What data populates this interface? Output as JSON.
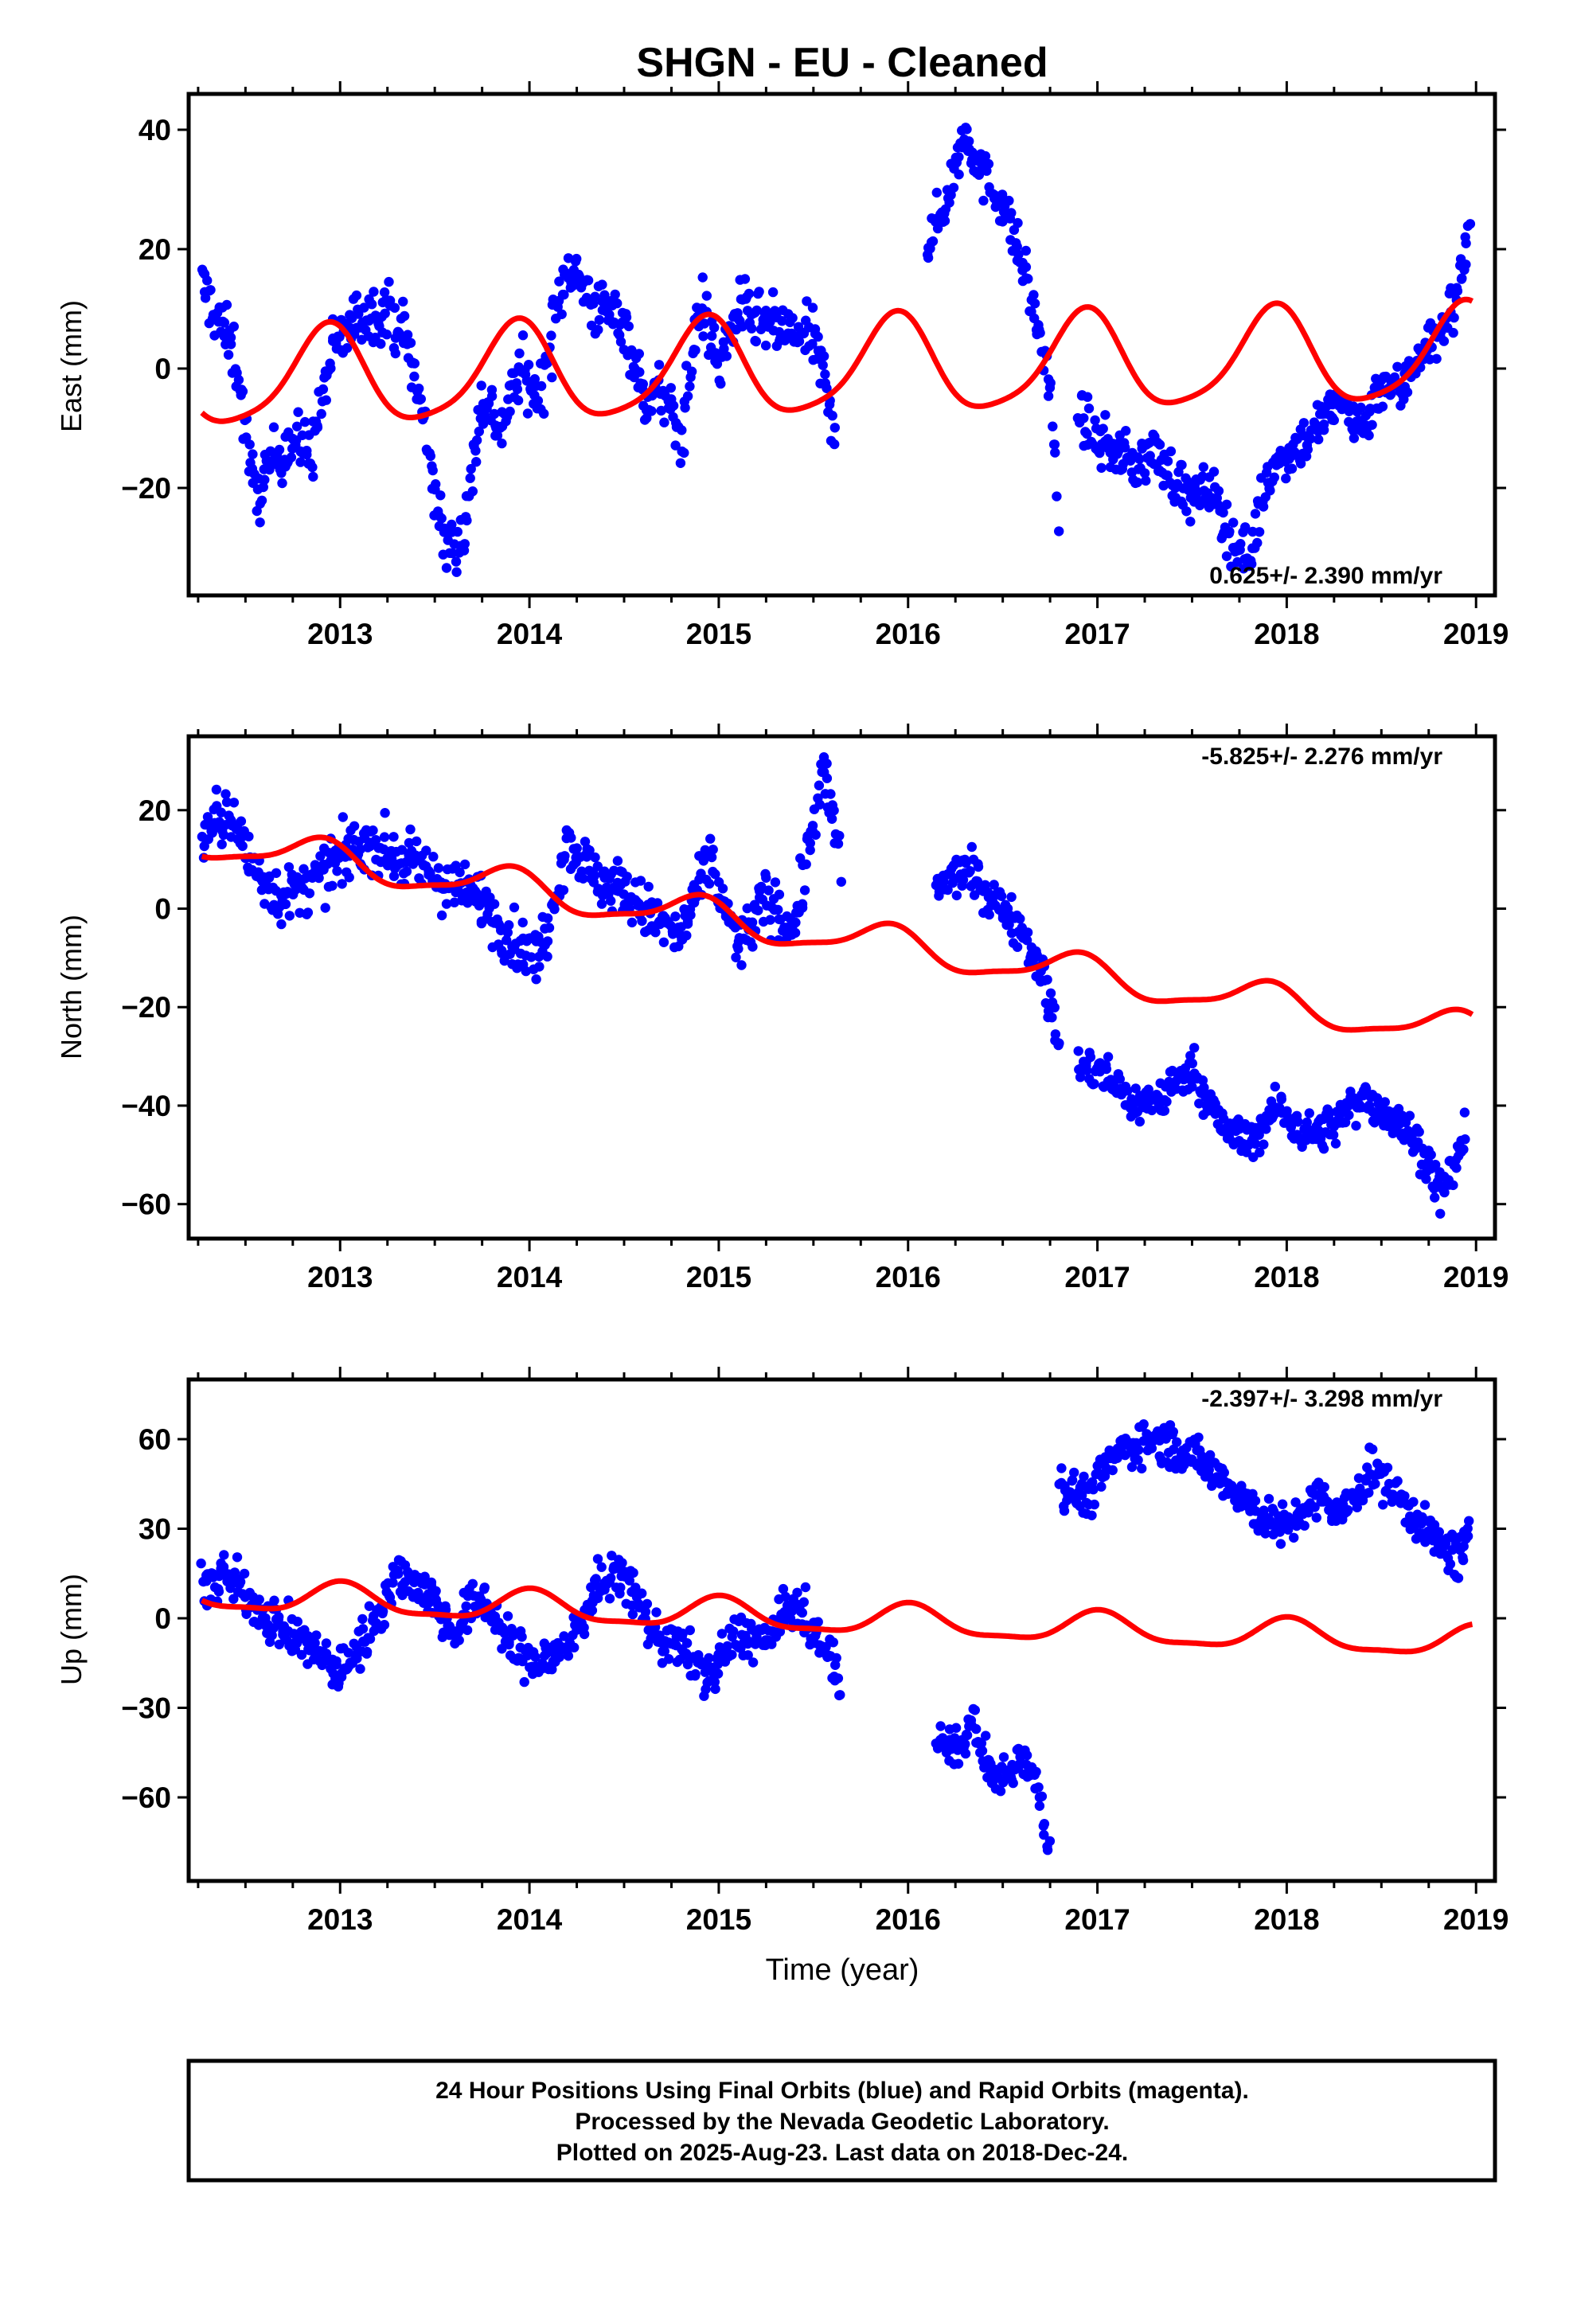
{
  "chart_data": {
    "type": "scatter",
    "title": "SHGN  - EU - Cleaned",
    "xlabel": "Time (year)",
    "x_range": [
      2012.2,
      2019.1
    ],
    "x_ticks": [
      "2013",
      "2014",
      "2015",
      "2016",
      "2017",
      "2018",
      "2019"
    ],
    "series_colors": {
      "final_orbits": "#0000ff",
      "model_fit": "#ff0000"
    },
    "panels": [
      {
        "id": "east",
        "ylabel": "East (mm)",
        "ylim": [
          -38,
          46
        ],
        "yticks": [
          "40",
          "20",
          "0",
          "−20"
        ],
        "ytick_values": [
          40,
          20,
          0,
          -20
        ],
        "rate_label": "0.625+/- 2.390 mm/yr",
        "rate_position": "bottom-right",
        "data_segments": [
          {
            "x": [
              2012.27,
              2012.45,
              2012.55,
              2012.65,
              2012.75,
              2012.85,
              2012.95,
              2013.1,
              2013.25,
              2013.35,
              2013.45,
              2013.55,
              2013.65,
              2013.75,
              2013.85,
              2013.95,
              2014.05,
              2014.2,
              2014.35,
              2014.5,
              2014.6,
              2014.7,
              2014.8,
              2014.9,
              2015.0,
              2015.1,
              2015.2,
              2015.35,
              2015.5,
              2015.62
            ],
            "y": [
              14,
              2,
              -22,
              -15,
              -12,
              -14,
              2,
              9,
              10,
              5,
              -10,
              -30,
              -28,
              -5,
              -10,
              0,
              -5,
              18,
              10,
              8,
              -5,
              -4,
              -12,
              12,
              0,
              10,
              8,
              6,
              5,
              -10
            ],
            "spread": 7
          },
          {
            "x": [
              2016.1,
              2016.2,
              2016.3,
              2016.4,
              2016.5,
              2016.6,
              2016.7,
              2016.75,
              2016.8
            ],
            "y": [
              20,
              28,
              40,
              32,
              28,
              18,
              5,
              -4,
              -25
            ],
            "spread": 6
          },
          {
            "x": [
              2016.9,
              2017.0,
              2017.1,
              2017.2,
              2017.3,
              2017.4,
              2017.5,
              2017.6,
              2017.7,
              2017.8,
              2017.9,
              2018.0,
              2018.1,
              2018.2,
              2018.3,
              2018.4,
              2018.5,
              2018.6,
              2018.7,
              2018.8,
              2018.9,
              2018.97
            ],
            "y": [
              -8,
              -12,
              -14,
              -16,
              -14,
              -18,
              -22,
              -20,
              -28,
              -32,
              -18,
              -14,
              -12,
              -8,
              -6,
              -10,
              -2,
              -4,
              3,
              5,
              12,
              25
            ],
            "spread": 6
          }
        ],
        "model": {
          "offset": 0.0,
          "rate": 0.625,
          "amplitude": 8.0,
          "phase": 2.0,
          "semi_amplitude": 1.5
        }
      },
      {
        "id": "north",
        "ylabel": "North (mm)",
        "ylim": [
          -67,
          35
        ],
        "yticks": [
          "20",
          "0",
          "−20",
          "−40",
          "−60"
        ],
        "ytick_values": [
          20,
          0,
          -20,
          -40,
          -60
        ],
        "rate_label": "-5.825+/- 2.276 mm/yr",
        "rate_position": "top-right",
        "data_segments": [
          {
            "x": [
              2012.27,
              2012.4,
              2012.55,
              2012.7,
              2012.85,
              2013.0,
              2013.15,
              2013.3,
              2013.45,
              2013.6,
              2013.75,
              2013.9,
              2014.05,
              2014.2,
              2014.35,
              2014.5,
              2014.65,
              2014.8,
              2014.95,
              2015.1,
              2015.25,
              2015.4,
              2015.55,
              2015.65
            ],
            "y": [
              14,
              20,
              8,
              2,
              5,
              10,
              14,
              10,
              8,
              4,
              2,
              -6,
              -10,
              14,
              6,
              4,
              -2,
              -6,
              10,
              -8,
              2,
              -4,
              28,
              8
            ],
            "spread": 8
          },
          {
            "x": [
              2016.15,
              2016.3,
              2016.45,
              2016.6,
              2016.7,
              2016.8
            ],
            "y": [
              4,
              8,
              2,
              -4,
              -12,
              -28
            ],
            "spread": 6
          },
          {
            "x": [
              2016.9,
              2017.05,
              2017.2,
              2017.35,
              2017.5,
              2017.65,
              2017.8,
              2017.95,
              2018.1,
              2018.25,
              2018.4,
              2018.55,
              2018.7,
              2018.82,
              2018.95
            ],
            "y": [
              -32,
              -34,
              -40,
              -38,
              -32,
              -44,
              -48,
              -40,
              -46,
              -44,
              -38,
              -42,
              -48,
              -58,
              -46
            ],
            "spread": 6
          }
        ],
        "model": {
          "offset": -5.0,
          "rate": -5.825,
          "amplitude": 3.5,
          "phase": 2.3,
          "semi_amplitude": 1.0
        }
      },
      {
        "id": "up",
        "ylabel": "Up (mm)",
        "ylim": [
          -88,
          80
        ],
        "yticks": [
          "60",
          "30",
          "0",
          "−30",
          "−60"
        ],
        "ytick_values": [
          60,
          30,
          0,
          -30,
          -60
        ],
        "rate_label": "-2.397+/- 3.298 mm/yr",
        "rate_position": "top-right",
        "data_segments": [
          {
            "x": [
              2012.27,
              2012.4,
              2012.55,
              2012.7,
              2012.85,
              2013.0,
              2013.15,
              2013.3,
              2013.45,
              2013.6,
              2013.75,
              2013.9,
              2014.05,
              2014.2,
              2014.35,
              2014.5,
              2014.65,
              2014.8,
              2014.95,
              2015.1,
              2015.25,
              2015.4,
              2015.55,
              2015.65
            ],
            "y": [
              10,
              14,
              5,
              -4,
              -10,
              -18,
              -5,
              15,
              10,
              -5,
              8,
              -10,
              -15,
              -10,
              10,
              15,
              -5,
              -10,
              -20,
              -5,
              -8,
              5,
              -10,
              -20
            ],
            "spread": 11
          },
          {
            "x": [
              2016.15,
              2016.25,
              2016.35,
              2016.45,
              2016.55,
              2016.62,
              2016.7,
              2016.75
            ],
            "y": [
              -40,
              -45,
              -35,
              -55,
              -50,
              -45,
              -60,
              -78
            ],
            "spread": 10
          },
          {
            "x": [
              2016.8,
              2016.95,
              2017.1,
              2017.25,
              2017.4,
              2017.55,
              2017.7,
              2017.85,
              2018.0,
              2018.15,
              2018.3,
              2018.45,
              2018.6,
              2018.75,
              2018.9,
              2018.97
            ],
            "y": [
              45,
              40,
              55,
              60,
              58,
              52,
              45,
              35,
              30,
              40,
              35,
              50,
              40,
              28,
              20,
              25
            ],
            "spread": 10
          }
        ],
        "model": {
          "offset": 0.0,
          "rate": -2.397,
          "amplitude": 5.0,
          "phase": 1.5,
          "semi_amplitude": 1.5
        }
      }
    ],
    "legend_box": {
      "position": "bottom-center",
      "lines": [
        "24 Hour Positions Using Final Orbits (blue) and Rapid Orbits (magenta).",
        "Processed by the Nevada Geodetic Laboratory.",
        "Plotted on 2025-Aug-23. Last data on 2018-Dec-24."
      ]
    }
  }
}
